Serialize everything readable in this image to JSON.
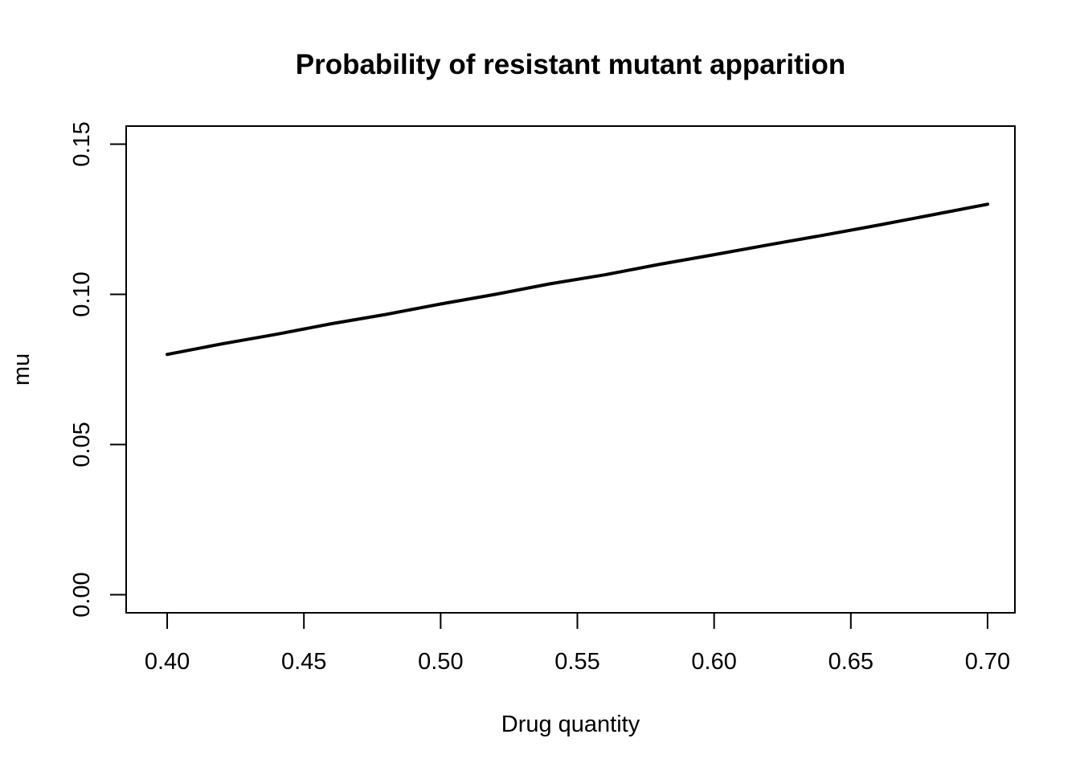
{
  "chart_data": {
    "type": "line",
    "title": "Probability of resistant mutant apparition",
    "xlabel": "Drug quantity",
    "ylabel": "mu",
    "xlim": [
      0.385,
      0.71
    ],
    "ylim": [
      -0.006,
      0.156
    ],
    "x_ticks": [
      0.4,
      0.45,
      0.5,
      0.55,
      0.6,
      0.65,
      0.7
    ],
    "x_tick_labels": [
      "0.40",
      "0.45",
      "0.50",
      "0.55",
      "0.60",
      "0.65",
      "0.70"
    ],
    "y_ticks": [
      0.0,
      0.05,
      0.1,
      0.15
    ],
    "y_tick_labels": [
      "0.00",
      "0.05",
      "0.10",
      "0.15"
    ],
    "grid": false,
    "series": [
      {
        "color": "#000000",
        "x": [
          0.4,
          0.42,
          0.44,
          0.46,
          0.48,
          0.5,
          0.52,
          0.54,
          0.56,
          0.58,
          0.6,
          0.62,
          0.64,
          0.66,
          0.68,
          0.7
        ],
        "y": [
          0.08,
          0.0835,
          0.0867,
          0.0902,
          0.0933,
          0.0968,
          0.1,
          0.1035,
          0.1065,
          0.11,
          0.1132,
          0.1165,
          0.1197,
          0.123,
          0.1265,
          0.13
        ]
      }
    ]
  }
}
